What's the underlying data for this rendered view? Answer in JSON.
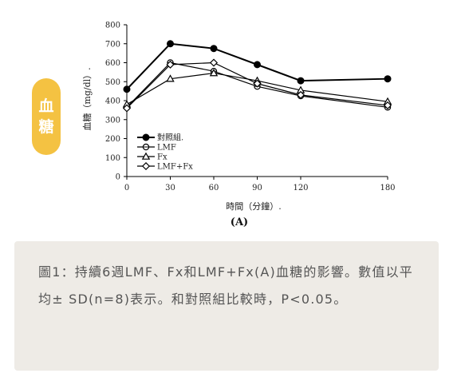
{
  "side_tag": {
    "lines": [
      "血",
      "糖"
    ]
  },
  "caption": "圖1：持續6週LMF、Fx和LMF+Fx(A)血糖的影響。數值以平均± SD(n=8)表示。和對照組比較時，P<0.05。",
  "colors": {
    "tag_bg": "#f4c242",
    "caption_bg": "#eeebe6",
    "line": "#000000"
  },
  "chart_data": {
    "type": "line",
    "title": "",
    "panel_label": "(A)",
    "xlabel": "時間（分鐘）.",
    "ylabel": "血糖（mg/dl）.",
    "x": [
      0,
      30,
      60,
      90,
      120,
      180
    ],
    "x_ticks": [
      "0",
      "30",
      "60",
      "90",
      "120",
      "180"
    ],
    "y_ticks": [
      "0",
      "100",
      "200",
      "300",
      "400",
      "500",
      "600",
      "700",
      "800"
    ],
    "ylim": [
      0,
      800
    ],
    "legend_position": "bottom-left",
    "series": [
      {
        "name": "對照組.",
        "marker": "filled-circle",
        "values": [
          460,
          700,
          675,
          590,
          505,
          515
        ]
      },
      {
        "name": "LMF",
        "marker": "open-circle",
        "values": [
          365,
          600,
          555,
          475,
          425,
          365
        ]
      },
      {
        "name": "Fx",
        "marker": "open-triangle",
        "values": [
          380,
          515,
          545,
          505,
          455,
          395
        ]
      },
      {
        "name": "LMF+Fx",
        "marker": "open-diamond",
        "values": [
          360,
          590,
          600,
          490,
          430,
          375
        ]
      }
    ]
  }
}
